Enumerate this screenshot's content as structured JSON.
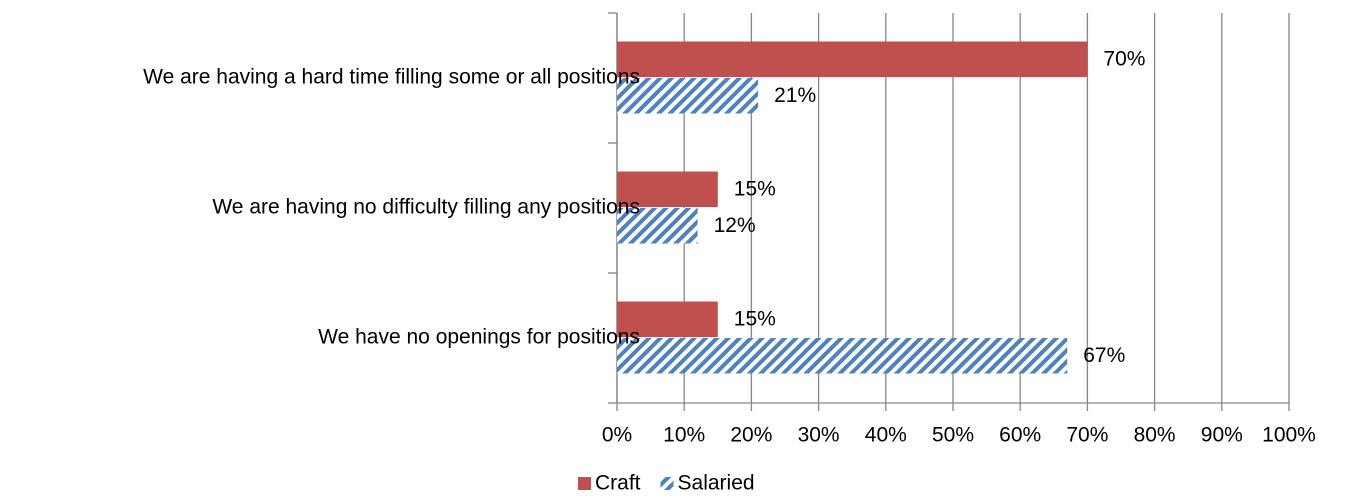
{
  "chart_data": {
    "type": "hbar",
    "categories": [
      "We are having a hard time filling some or all positions",
      "We are having no difficulty filling any positions",
      "We have no openings for positions"
    ],
    "series": [
      {
        "name": "Craft",
        "color": "#c0504d",
        "hatch": false,
        "values": [
          70,
          15,
          15
        ],
        "value_labels": [
          "70%",
          "15%",
          "15%"
        ]
      },
      {
        "name": "Salaried",
        "color": "#4f81bd",
        "hatch": true,
        "values": [
          21,
          12,
          67
        ],
        "value_labels": [
          "21%",
          "12%",
          "67%"
        ]
      }
    ],
    "xlim": [
      0,
      100
    ],
    "xticks": [
      {
        "value": 0,
        "label": "0%"
      },
      {
        "value": 10,
        "label": "10%"
      },
      {
        "value": 20,
        "label": "20%"
      },
      {
        "value": 30,
        "label": "30%"
      },
      {
        "value": 40,
        "label": "40%"
      },
      {
        "value": 50,
        "label": "50%"
      },
      {
        "value": 60,
        "label": "60%"
      },
      {
        "value": 70,
        "label": "70%"
      },
      {
        "value": 80,
        "label": "80%"
      },
      {
        "value": 90,
        "label": "90%"
      },
      {
        "value": 100,
        "label": "100%"
      }
    ],
    "grid": true,
    "legend": "bottom"
  }
}
